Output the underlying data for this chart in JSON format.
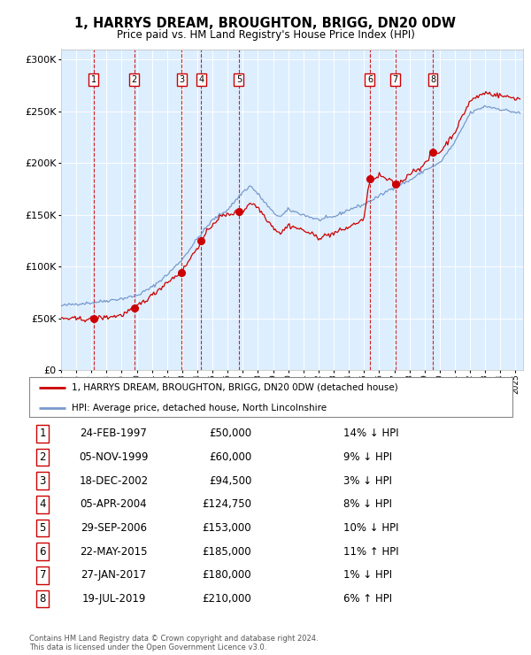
{
  "title": "1, HARRYS DREAM, BROUGHTON, BRIGG, DN20 0DW",
  "subtitle": "Price paid vs. HM Land Registry's House Price Index (HPI)",
  "transactions": [
    {
      "num": 1,
      "date": "24-FEB-1997",
      "year": 1997.14,
      "price": 50000,
      "pct": "14%",
      "dir": "↓"
    },
    {
      "num": 2,
      "date": "05-NOV-1999",
      "year": 1999.84,
      "price": 60000,
      "pct": "9%",
      "dir": "↓"
    },
    {
      "num": 3,
      "date": "18-DEC-2002",
      "year": 2002.96,
      "price": 94500,
      "pct": "3%",
      "dir": "↓"
    },
    {
      "num": 4,
      "date": "05-APR-2004",
      "year": 2004.26,
      "price": 124750,
      "pct": "8%",
      "dir": "↓"
    },
    {
      "num": 5,
      "date": "29-SEP-2006",
      "year": 2006.74,
      "price": 153000,
      "pct": "10%",
      "dir": "↓"
    },
    {
      "num": 6,
      "date": "22-MAY-2015",
      "year": 2015.39,
      "price": 185000,
      "pct": "11%",
      "dir": "↑"
    },
    {
      "num": 7,
      "date": "27-JAN-2017",
      "year": 2017.07,
      "price": 180000,
      "pct": "1%",
      "dir": "↓"
    },
    {
      "num": 8,
      "date": "19-JUL-2019",
      "year": 2019.54,
      "price": 210000,
      "pct": "6%",
      "dir": "↑"
    }
  ],
  "hpi_line_color": "#7799cc",
  "price_line_color": "#cc0000",
  "dot_color": "#cc0000",
  "vline_color": "#cc0000",
  "bg_color": "#ddeeff",
  "ylim": [
    0,
    310000
  ],
  "yticks": [
    0,
    50000,
    100000,
    150000,
    200000,
    250000,
    300000
  ],
  "xlim_start": 1995.0,
  "xlim_end": 2025.5,
  "footer": "Contains HM Land Registry data © Crown copyright and database right 2024.\nThis data is licensed under the Open Government Licence v3.0.",
  "legend_line1": "1, HARRYS DREAM, BROUGHTON, BRIGG, DN20 0DW (detached house)",
  "legend_line2": "HPI: Average price, detached house, North Lincolnshire"
}
